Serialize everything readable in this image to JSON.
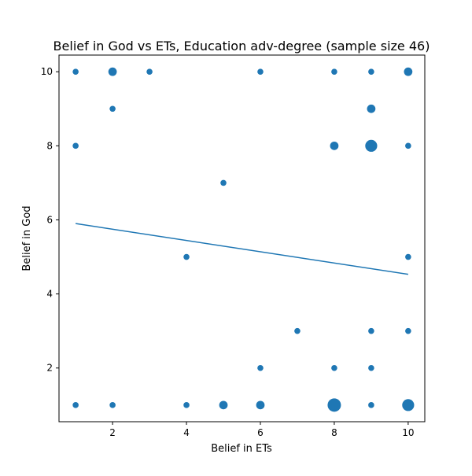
{
  "chart_data": {
    "type": "scatter",
    "title": "Belief in God vs ETs, Education adv-degree (sample size 46)",
    "xlabel": "Belief in ETs",
    "ylabel": "Belief in God",
    "xlim": [
      0.55,
      10.45
    ],
    "ylim": [
      0.55,
      10.45
    ],
    "xticks": [
      2,
      4,
      6,
      8,
      10
    ],
    "yticks": [
      2,
      4,
      6,
      8,
      10
    ],
    "grid": false,
    "marker_color": "#1f77b4",
    "line_color": "#1f77b4",
    "points": [
      {
        "x": 1,
        "y": 10,
        "count": 1
      },
      {
        "x": 2,
        "y": 10,
        "count": 2
      },
      {
        "x": 3,
        "y": 10,
        "count": 1
      },
      {
        "x": 6,
        "y": 10,
        "count": 1
      },
      {
        "x": 8,
        "y": 10,
        "count": 1
      },
      {
        "x": 9,
        "y": 10,
        "count": 1
      },
      {
        "x": 10,
        "y": 10,
        "count": 2
      },
      {
        "x": 2,
        "y": 9,
        "count": 1
      },
      {
        "x": 9,
        "y": 9,
        "count": 2
      },
      {
        "x": 1,
        "y": 8,
        "count": 1
      },
      {
        "x": 8,
        "y": 8,
        "count": 2
      },
      {
        "x": 9,
        "y": 8,
        "count": 4
      },
      {
        "x": 10,
        "y": 8,
        "count": 1
      },
      {
        "x": 5,
        "y": 7,
        "count": 1
      },
      {
        "x": 4,
        "y": 5,
        "count": 1
      },
      {
        "x": 10,
        "y": 5,
        "count": 1
      },
      {
        "x": 7,
        "y": 3,
        "count": 1
      },
      {
        "x": 9,
        "y": 3,
        "count": 1
      },
      {
        "x": 10,
        "y": 3,
        "count": 1
      },
      {
        "x": 6,
        "y": 2,
        "count": 1
      },
      {
        "x": 8,
        "y": 2,
        "count": 1
      },
      {
        "x": 9,
        "y": 2,
        "count": 1
      },
      {
        "x": 1,
        "y": 1,
        "count": 1
      },
      {
        "x": 2,
        "y": 1,
        "count": 1
      },
      {
        "x": 4,
        "y": 1,
        "count": 1
      },
      {
        "x": 5,
        "y": 1,
        "count": 2
      },
      {
        "x": 6,
        "y": 1,
        "count": 2
      },
      {
        "x": 8,
        "y": 1,
        "count": 5
      },
      {
        "x": 9,
        "y": 1,
        "count": 1
      },
      {
        "x": 10,
        "y": 1,
        "count": 4
      }
    ],
    "trend_line": {
      "x": [
        1,
        10
      ],
      "y": [
        5.9,
        4.53
      ]
    }
  }
}
